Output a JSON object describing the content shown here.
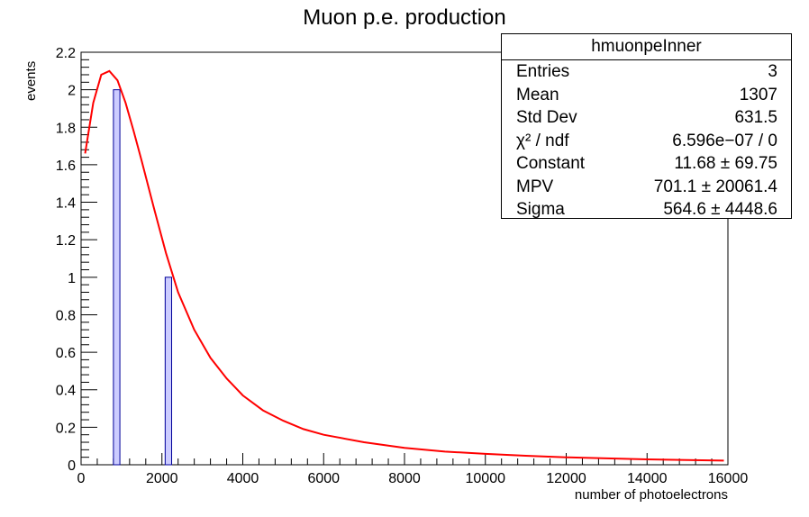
{
  "chart_data": {
    "type": "bar",
    "title": "Muon p.e. production",
    "xlabel": "number of photoelectrons",
    "ylabel": "events",
    "xlim": [
      0,
      16000
    ],
    "ylim": [
      0,
      2.2
    ],
    "x_ticks": [
      "0",
      "2000",
      "4000",
      "6000",
      "8000",
      "10000",
      "12000",
      "14000",
      "16000"
    ],
    "y_ticks": [
      "0",
      "0.2",
      "0.4",
      "0.6",
      "0.8",
      "1",
      "1.2",
      "1.4",
      "1.6",
      "1.8",
      "2",
      "2.2"
    ],
    "bins": [
      {
        "x_low": 800,
        "x_high": 960,
        "value": 2
      },
      {
        "x_low": 2080,
        "x_high": 2240,
        "value": 1
      }
    ],
    "fit": {
      "type": "landau",
      "color": "#ff0000",
      "x": [
        100,
        300,
        500,
        700,
        900,
        1100,
        1300,
        1500,
        1800,
        2100,
        2400,
        2800,
        3200,
        3600,
        4000,
        4500,
        5000,
        5500,
        6000,
        7000,
        8000,
        9000,
        10000,
        11000,
        12000,
        13000,
        14000,
        15000,
        15900
      ],
      "y": [
        1.66,
        1.93,
        2.08,
        2.1,
        2.05,
        1.93,
        1.78,
        1.62,
        1.37,
        1.13,
        0.92,
        0.72,
        0.57,
        0.46,
        0.37,
        0.29,
        0.235,
        0.19,
        0.16,
        0.12,
        0.09,
        0.07,
        0.058,
        0.048,
        0.04,
        0.034,
        0.029,
        0.025,
        0.022
      ]
    },
    "colors": {
      "bar_fill": "#ccccff",
      "bar_stroke": "#000099",
      "fit_line": "#ff0000"
    },
    "stats": {
      "title": "hmuonpeInner",
      "rows": [
        {
          "label": "Entries",
          "value": "3"
        },
        {
          "label": "Mean",
          "value": "1307"
        },
        {
          "label": "Std Dev",
          "value": "631.5"
        },
        {
          "label": "χ² / ndf",
          "value": "6.596e−07 / 0"
        },
        {
          "label": "Constant",
          "value": "11.68 ± 69.75"
        },
        {
          "label": "MPV",
          "value": "701.1 ± 20061.4"
        },
        {
          "label": "Sigma",
          "value": "564.6 ± 4448.6"
        }
      ]
    }
  }
}
